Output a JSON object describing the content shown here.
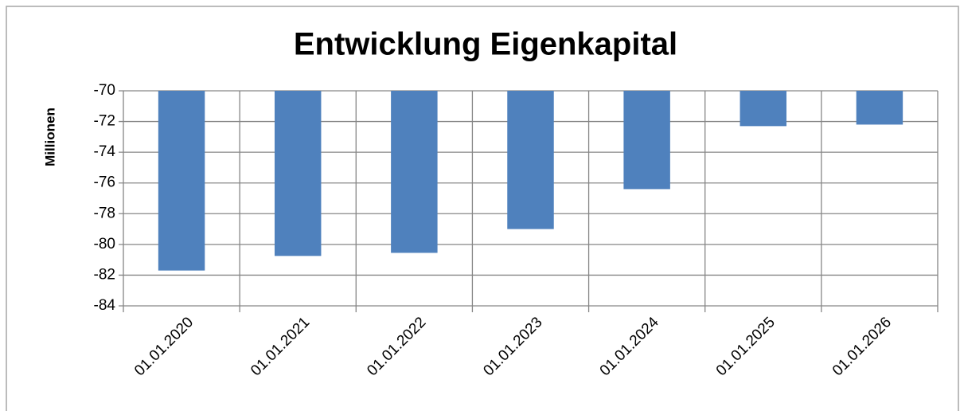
{
  "chart_data": {
    "type": "bar",
    "title": "Entwicklung Eigenkapital",
    "y_label": "Millionen",
    "categories": [
      "01.01.2020",
      "01.01.2021",
      "01.01.2022",
      "01.01.2023",
      "01.01.2024",
      "01.01.2025",
      "01.01.2026"
    ],
    "values": [
      -81.7,
      -80.75,
      -80.55,
      -79.0,
      -76.4,
      -72.3,
      -72.2
    ],
    "color": "#4f81bd",
    "ylim": [
      -84,
      -70
    ],
    "yticks": [
      -84,
      -82,
      -80,
      -78,
      -76,
      -74,
      -72,
      -70
    ],
    "grid": true
  }
}
